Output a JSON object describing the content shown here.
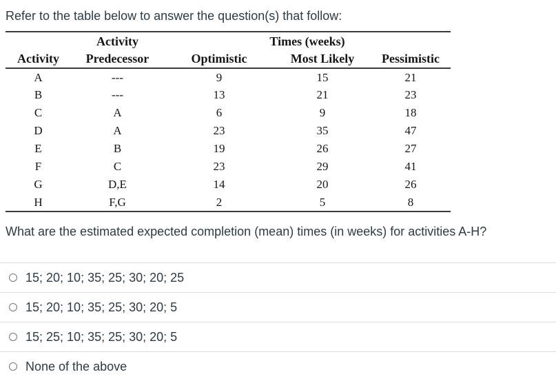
{
  "page": {
    "intro": "Refer to the table below to answer the question(s) that follow:",
    "question": "What are the estimated expected completion (mean) times (in weeks) for activities A-H?"
  },
  "table": {
    "group_headers": {
      "activity_group": "Activity",
      "times_group": "Times (weeks)"
    },
    "columns": [
      "Activity",
      "Predecessor",
      "Optimistic",
      "Most Likely",
      "Pessimistic"
    ],
    "rows": [
      {
        "activity": "A",
        "predecessor": "---",
        "optimistic": "9",
        "most_likely": "15",
        "pessimistic": "21"
      },
      {
        "activity": "B",
        "predecessor": "---",
        "optimistic": "13",
        "most_likely": "21",
        "pessimistic": "23"
      },
      {
        "activity": "C",
        "predecessor": "A",
        "optimistic": "6",
        "most_likely": "9",
        "pessimistic": "18"
      },
      {
        "activity": "D",
        "predecessor": "A",
        "optimistic": "23",
        "most_likely": "35",
        "pessimistic": "47"
      },
      {
        "activity": "E",
        "predecessor": "B",
        "optimistic": "19",
        "most_likely": "26",
        "pessimistic": "27"
      },
      {
        "activity": "F",
        "predecessor": "C",
        "optimistic": "23",
        "most_likely": "29",
        "pessimistic": "41"
      },
      {
        "activity": "G",
        "predecessor": "D,E",
        "optimistic": "14",
        "most_likely": "20",
        "pessimistic": "26"
      },
      {
        "activity": "H",
        "predecessor": "F,G",
        "optimistic": "2",
        "most_likely": "5",
        "pessimistic": "8"
      }
    ]
  },
  "options": [
    {
      "label": "15; 20; 10; 35; 25; 30; 20; 25"
    },
    {
      "label": "15; 20; 10; 35; 25; 30; 20; 5"
    },
    {
      "label": "15; 25; 10; 35; 25; 30; 20; 5"
    },
    {
      "label": "None of the above"
    }
  ],
  "colors": {
    "text": "#2d3b45",
    "table_text": "#151515",
    "table_rule": "#3a3a3a",
    "divider": "#dcdcdc",
    "radio_border": "#767676"
  }
}
